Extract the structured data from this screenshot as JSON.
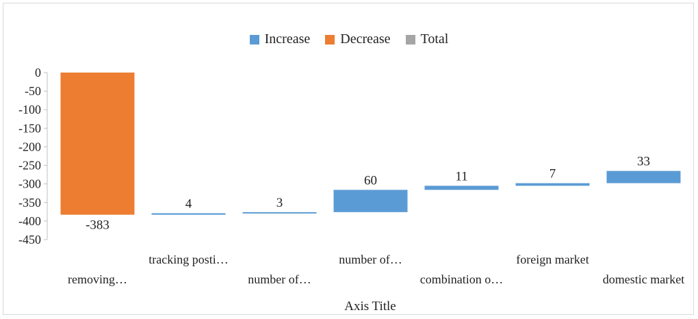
{
  "chart_data": {
    "type": "bar",
    "subtype": "waterfall",
    "categories": [
      "removing…",
      "tracking posti…",
      "number of…",
      "number of…",
      "combination o…",
      "foreign market",
      "domestic market"
    ],
    "values": [
      -383,
      4,
      3,
      60,
      11,
      7,
      33
    ],
    "data_labels": [
      "-383",
      "4",
      "3",
      "60",
      "11",
      "7",
      "33"
    ],
    "xlabel": "Axis Title",
    "ylabel": "",
    "ylim": [
      -450,
      0
    ],
    "yticks": [
      0,
      -50,
      -100,
      -150,
      -200,
      -250,
      -300,
      -350,
      -400,
      -450
    ],
    "ytick_labels": [
      "0",
      "-50",
      "-100",
      "-150",
      "-200",
      "-250",
      "-300",
      "-350",
      "-400",
      "-450"
    ],
    "grid": false,
    "legend_position": "top",
    "legend": [
      {
        "name": "Increase",
        "color": "#5b9bd5"
      },
      {
        "name": "Decrease",
        "color": "#ed7d31"
      },
      {
        "name": "Total",
        "color": "#a5a5a5"
      }
    ],
    "colors": {
      "increase": "#5b9bd5",
      "decrease": "#ed7d31",
      "total": "#a5a5a5"
    }
  }
}
